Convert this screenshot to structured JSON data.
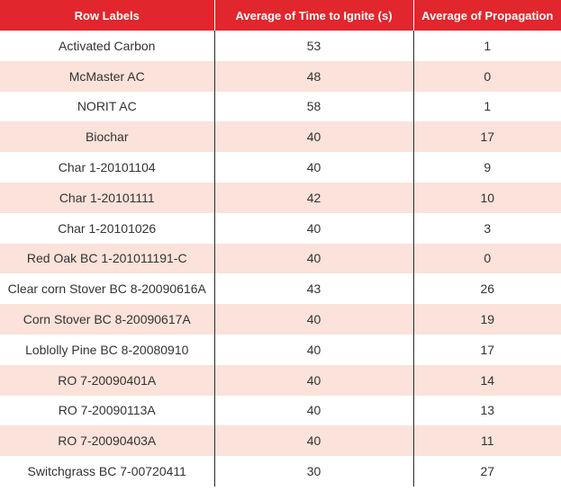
{
  "colors": {
    "header_bg": "#e1262d",
    "header_text": "#ffffff",
    "band_row": "#fbe2da",
    "plain_row": "#ffffff"
  },
  "table": {
    "headers": [
      "Row Labels",
      "Average of Time to Ignite (s)",
      "Average of Propagation"
    ],
    "rows": [
      [
        "Activated Carbon",
        "53",
        "1"
      ],
      [
        "McMaster AC",
        "48",
        "0"
      ],
      [
        "NORIT AC",
        "58",
        "1"
      ],
      [
        "Biochar",
        "40",
        "17"
      ],
      [
        "Char 1-20101104",
        "40",
        "9"
      ],
      [
        "Char 1-20101111",
        "42",
        "10"
      ],
      [
        "Char 1-20101026",
        "40",
        "3"
      ],
      [
        "Red Oak BC 1-201011191-C",
        "40",
        "0"
      ],
      [
        "Clear corn Stover BC 8-20090616A",
        "43",
        "26"
      ],
      [
        "Corn Stover BC 8-20090617A",
        "40",
        "19"
      ],
      [
        "Loblolly Pine BC 8-20080910",
        "40",
        "17"
      ],
      [
        "RO 7-20090401A",
        "40",
        "14"
      ],
      [
        "RO 7-20090113A",
        "40",
        "13"
      ],
      [
        "RO 7-20090403A",
        "40",
        "11"
      ],
      [
        "Switchgrass BC 7-00720411",
        "30",
        "27"
      ]
    ]
  }
}
